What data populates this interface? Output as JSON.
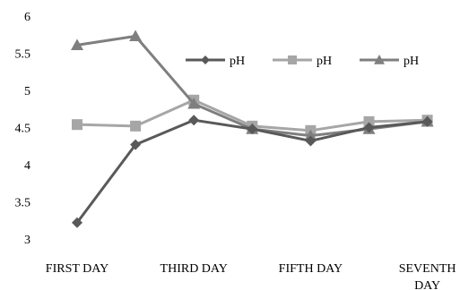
{
  "chart_data": {
    "type": "line",
    "categories": [
      "FIRST DAY",
      "",
      "THIRD DAY",
      "",
      "FIFTH DAY",
      "",
      "SEVENTH DAY"
    ],
    "series": [
      {
        "name": "pH",
        "color": "#595959",
        "marker": "diamond",
        "values": [
          3.22,
          4.27,
          4.6,
          4.48,
          4.32,
          4.5,
          4.58
        ]
      },
      {
        "name": "pH",
        "color": "#a6a6a6",
        "marker": "square",
        "values": [
          4.54,
          4.52,
          4.87,
          4.52,
          4.46,
          4.58,
          4.6
        ]
      },
      {
        "name": "pH",
        "color": "#7f7f7f",
        "marker": "triangle",
        "values": [
          5.61,
          5.73,
          4.82,
          4.48,
          4.39,
          4.48,
          4.58
        ]
      }
    ],
    "ylim": [
      3,
      6
    ],
    "yticks": [
      "3",
      "3.5",
      "4",
      "4.5",
      "5",
      "5.5",
      "6"
    ],
    "xtick_labels": [
      {
        "index": 0,
        "lines": [
          "FIRST DAY"
        ]
      },
      {
        "index": 2,
        "lines": [
          "THIRD DAY"
        ]
      },
      {
        "index": 4,
        "lines": [
          "FIFTH DAY"
        ]
      },
      {
        "index": 6,
        "lines": [
          "SEVENTH",
          "DAY"
        ]
      }
    ],
    "title": "",
    "xlabel": "",
    "ylabel": "",
    "grid": false,
    "legend": "top-right"
  }
}
